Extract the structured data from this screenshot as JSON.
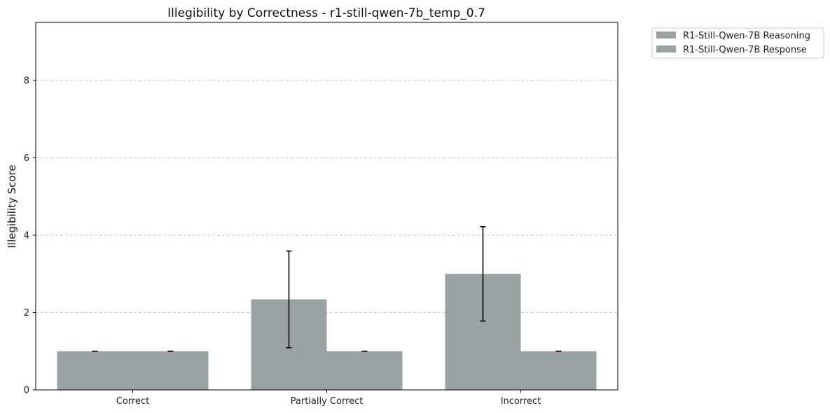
{
  "chart_data": {
    "type": "bar",
    "title": "Illegibility by Correctness - r1-still-qwen-7b_temp_0.7",
    "xlabel": "",
    "ylabel": "Illegibility Score",
    "categories": [
      "Correct",
      "Partially Correct",
      "Incorrect"
    ],
    "ylim": [
      0,
      9.5
    ],
    "yticks": [
      0,
      2,
      4,
      6,
      8
    ],
    "grid": "horizontal-dashed",
    "legend_position": "outside-top-right",
    "series": [
      {
        "name": "R1-Still-Qwen-7B Reasoning",
        "values": [
          1.0,
          2.34,
          3.0
        ],
        "error": [
          0.0,
          1.25,
          1.22
        ],
        "color": "#99a3a3"
      },
      {
        "name": "R1-Still-Qwen-7B Response",
        "values": [
          1.0,
          1.0,
          1.0
        ],
        "error": [
          0.0,
          0.0,
          0.0
        ],
        "color": "#99a3a3"
      }
    ]
  }
}
